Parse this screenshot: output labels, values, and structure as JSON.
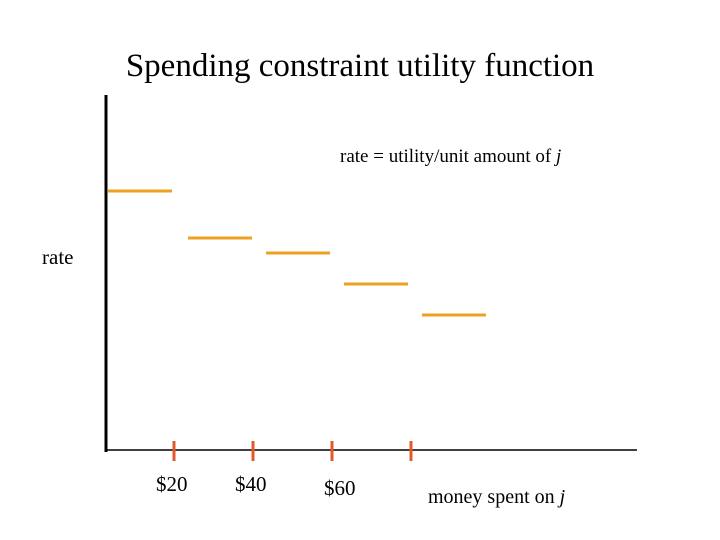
{
  "title": "Spending constraint utility function",
  "y_axis_label": "rate",
  "x_axis_label": "money spent on ",
  "x_axis_label_var": "j",
  "note": "rate = utility/unit amount of ",
  "note_var": "j",
  "colors": {
    "axis": "#000000",
    "segment": "#f0a020",
    "tick": "#e05a28"
  },
  "ticks": [
    "$20",
    "$40",
    "$60",
    ""
  ],
  "chart_data": {
    "type": "step",
    "xlabel": "money spent on j",
    "ylabel": "rate",
    "x_ticks": [
      "$20",
      "$40",
      "$60"
    ],
    "segments": [
      {
        "x_start": 0,
        "x_end": 20,
        "rate": 5
      },
      {
        "x_start": 20,
        "x_end": 40,
        "rate": 4.1
      },
      {
        "x_start": 40,
        "x_end": 60,
        "rate": 3.8
      },
      {
        "x_start": 60,
        "x_end": 80,
        "rate": 3.2
      },
      {
        "x_start": 80,
        "x_end": 100,
        "rate": 2.6
      }
    ]
  }
}
